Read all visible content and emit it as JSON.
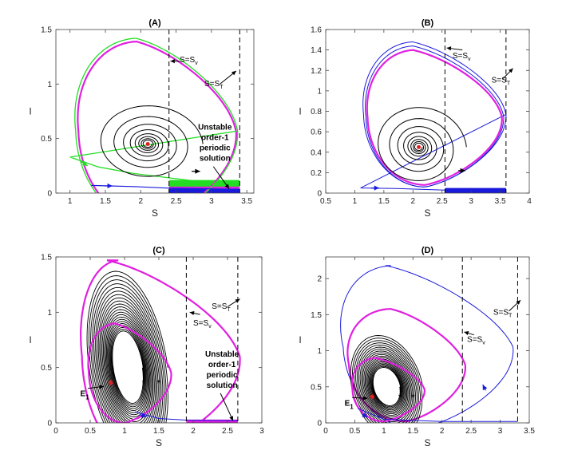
{
  "chart_data": [
    {
      "type": "line",
      "title": "(A)",
      "xlabel": "S",
      "ylabel": "I",
      "xlim": [
        0.8,
        3.6
      ],
      "ylim": [
        0,
        1.5
      ],
      "xticks": [
        1,
        1.5,
        2,
        2.5,
        3,
        3.5
      ],
      "yticks": [
        0,
        0.5,
        1,
        1.5
      ],
      "xtick_labels": [
        "1",
        "1.5",
        "2",
        "2.5",
        "3",
        "3.5"
      ],
      "ytick_labels": [
        "0",
        "0.5",
        "1",
        "1.5"
      ],
      "equilibrium": [
        2.1,
        0.45
      ],
      "vlines": [
        {
          "x": 2.4,
          "label": "S=S",
          "sub": "v",
          "label_at": [
            2.55,
            1.2
          ],
          "arrow_from": [
            2.55,
            1.21
          ],
          "arrow_to": [
            2.42,
            1.21
          ]
        },
        {
          "x": 3.4,
          "label": "S=S",
          "sub": "T",
          "label_at": [
            2.9,
            0.98
          ],
          "arrow_from": [
            3.12,
            1.0
          ],
          "arrow_to": [
            3.35,
            1.12
          ]
        }
      ],
      "annotation": {
        "lines": [
          "Unstable",
          "order-1",
          "periodic",
          "solution"
        ],
        "at": [
          3.05,
          0.58
        ],
        "arrow_to": [
          3.25,
          0.04
        ]
      },
      "series": [
        {
          "name": "magenta limit cycle",
          "color": "#e020e0",
          "width": 2.2,
          "kind": "cycle",
          "cx": 2.12,
          "cy": 0.56,
          "rxL": 1.0,
          "rxR": 1.23,
          "ry": 0.83,
          "skew": -0.6
        },
        {
          "name": "green orbit",
          "color": "#22dd22",
          "width": 1.3,
          "kind": "cycle",
          "cx": 2.12,
          "cy": 0.57,
          "rxL": 1.04,
          "rxR": 1.25,
          "ry": 0.85,
          "skew": -0.6,
          "tail": [
            [
              1.0,
              0.33
            ],
            [
              1.4,
              0.24
            ],
            [
              1.9,
              0.18
            ],
            [
              2.4,
              0.14
            ],
            [
              2.9,
              0.1
            ],
            [
              3.4,
              0.07
            ]
          ]
        },
        {
          "name": "black spiral",
          "color": "#000000",
          "width": 1.0,
          "kind": "spiral",
          "cx": 2.1,
          "cy": 0.45,
          "r0x": 0.78,
          "r0y": 0.38,
          "turns": 8,
          "decay": 0.72
        },
        {
          "name": "blue orbit",
          "color": "#1a1adc",
          "width": 1.2,
          "kind": "polyline",
          "points": [
            [
              1.3,
              0.07
            ],
            [
              1.9,
              0.06
            ],
            [
              2.4,
              0.045
            ],
            [
              3.4,
              0.035
            ]
          ]
        }
      ],
      "bands": [
        {
          "color": "#22dd22",
          "x0": 2.4,
          "x1": 3.4,
          "y0": 0.0,
          "y1": 0.12
        },
        {
          "color": "#1a1adc",
          "x0": 2.4,
          "x1": 3.4,
          "y0": 0.0,
          "y1": 0.045
        },
        {
          "color": "#e020e0",
          "x0": 2.4,
          "x1": 3.4,
          "y0": 0.04,
          "y1": 0.06
        }
      ],
      "arrows": [
        {
          "color": "#22dd22",
          "x": 1.15,
          "y": 0.29,
          "dx": 0.1,
          "dy": -0.04
        },
        {
          "color": "#1a1adc",
          "x": 1.48,
          "y": 0.066,
          "dx": 0.12,
          "dy": 0
        },
        {
          "color": "#000000",
          "x": 2.72,
          "y": 0.2,
          "dx": 0.12,
          "dy": 0
        }
      ],
      "stars": []
    },
    {
      "type": "line",
      "title": "(B)",
      "xlabel": "S",
      "ylabel": "I",
      "xlim": [
        0.5,
        4
      ],
      "ylim": [
        0,
        1.6
      ],
      "xticks": [
        0.5,
        1,
        1.5,
        2,
        2.5,
        3,
        3.5,
        4
      ],
      "yticks": [
        0,
        0.2,
        0.4,
        0.6,
        0.8,
        1,
        1.2,
        1.4,
        1.6
      ],
      "xtick_labels": [
        "0.5",
        "1",
        "1.5",
        "2",
        "2.5",
        "3",
        "3.5",
        "4"
      ],
      "ytick_labels": [
        "0",
        "0.2",
        "0.4",
        "0.6",
        "0.8",
        "1",
        "1.2",
        "1.4",
        "1.6"
      ],
      "equilibrium": [
        2.1,
        0.45
      ],
      "vlines": [
        {
          "x": 2.55,
          "label": "S=S",
          "sub": "v",
          "label_at": [
            2.68,
            1.32
          ],
          "arrow_from": [
            2.85,
            1.4
          ],
          "arrow_to": [
            2.58,
            1.42
          ]
        },
        {
          "x": 3.6,
          "label": "S=S",
          "sub": "T",
          "label_at": [
            3.35,
            1.08
          ],
          "arrow_from": [
            3.55,
            1.12
          ],
          "arrow_to": [
            3.72,
            1.22
          ]
        }
      ],
      "annotation": null,
      "series": [
        {
          "name": "blue orbit",
          "color": "#1a1adc",
          "width": 1.0,
          "kind": "cycle",
          "cx": 2.18,
          "cy": 0.77,
          "rxL": 1.03,
          "rxR": 1.42,
          "ry": 0.71,
          "skew": -0.55,
          "tail": [
            [
              1.1,
              0.05
            ],
            [
              1.7,
              0.045
            ],
            [
              2.55,
              0.03
            ],
            [
              3.6,
              0.025
            ]
          ]
        },
        {
          "name": "blue orbit 2",
          "color": "#1a1adc",
          "width": 1.0,
          "kind": "cycle",
          "cx": 2.18,
          "cy": 0.75,
          "rxL": 0.99,
          "rxR": 1.38,
          "ry": 0.69,
          "skew": -0.55
        },
        {
          "name": "magenta limit cycle",
          "color": "#e020e0",
          "width": 2.2,
          "kind": "cycle",
          "cx": 2.18,
          "cy": 0.74,
          "rxL": 0.96,
          "rxR": 1.35,
          "ry": 0.66,
          "skew": -0.55
        },
        {
          "name": "black spiral",
          "color": "#000000",
          "width": 1.0,
          "kind": "spiral",
          "cx": 2.1,
          "cy": 0.45,
          "r0x": 0.82,
          "r0y": 0.42,
          "turns": 8,
          "decay": 0.72
        }
      ],
      "bands": [
        {
          "color": "#1a1adc",
          "x0": 2.55,
          "x1": 3.6,
          "y0": 0.0,
          "y1": 0.05
        }
      ],
      "arrows": [
        {
          "color": "#1a1adc",
          "x": 1.28,
          "y": 0.05,
          "dx": 0.14,
          "dy": 0
        },
        {
          "color": "#000000",
          "x": 2.78,
          "y": 0.22,
          "dx": 0.12,
          "dy": 0
        }
      ],
      "stars": []
    },
    {
      "type": "line",
      "title": "(C)",
      "xlabel": "S",
      "ylabel": "I",
      "xlim": [
        0,
        3
      ],
      "ylim": [
        0,
        1.5
      ],
      "xticks": [
        0,
        0.5,
        1,
        1.5,
        2,
        2.5,
        3
      ],
      "yticks": [
        0,
        0.5,
        1,
        1.5
      ],
      "xtick_labels": [
        "0",
        "0.5",
        "1",
        "1.5",
        "2",
        "2.5",
        "3"
      ],
      "ytick_labels": [
        "0",
        "0.5",
        "1",
        "1.5"
      ],
      "equilibrium": [
        0.8,
        0.36
      ],
      "vlines": [
        {
          "x": 1.9,
          "label": "S=S",
          "sub": "v",
          "label_at": [
            2.0,
            0.88
          ],
          "arrow_from": [
            2.1,
            0.98
          ],
          "arrow_to": [
            1.95,
            1.0
          ]
        },
        {
          "x": 2.65,
          "label": "S=S",
          "sub": "T",
          "label_at": [
            2.27,
            1.03
          ],
          "arrow_from": [
            2.5,
            1.05
          ],
          "arrow_to": [
            2.68,
            1.12
          ]
        }
      ],
      "annotation": {
        "lines": [
          "Unstable",
          "order-1",
          "periodic",
          "solution"
        ],
        "at": [
          2.42,
          0.6
        ],
        "arrow_to": [
          2.58,
          0.02
        ]
      },
      "series": [
        {
          "name": "magenta outer cycle",
          "color": "#e020e0",
          "width": 2.2,
          "kind": "cycle",
          "cx": 1.1,
          "cy": 0.6,
          "rxL": 0.72,
          "rxR": 1.58,
          "ry": 0.87,
          "skew": -0.9
        },
        {
          "name": "black spiral outward",
          "color": "#000000",
          "width": 0.9,
          "kind": "spiral",
          "cx": 1.05,
          "cy": 0.5,
          "r0x": 0.58,
          "r0y": 0.88,
          "turns": 22,
          "decay": 0.955,
          "skew": -0.7
        },
        {
          "name": "magenta inner cycle",
          "color": "#e020e0",
          "width": 2.2,
          "kind": "cycle",
          "cx": 0.98,
          "cy": 0.45,
          "rxL": 0.5,
          "rxR": 0.7,
          "ry": 0.45,
          "skew": -0.75
        },
        {
          "name": "blue orbit",
          "color": "#1a1adc",
          "width": 1.0,
          "kind": "polyline",
          "points": [
            [
              1.15,
              0.1
            ],
            [
              1.5,
              0.04
            ],
            [
              1.9,
              0.025
            ],
            [
              2.65,
              0.02
            ]
          ]
        }
      ],
      "bands": [
        {
          "color": "#e020e0",
          "x0": 1.9,
          "x1": 2.65,
          "y0": 0.0,
          "y1": 0.03
        }
      ],
      "arrows": [
        {
          "color": "#1a1adc",
          "x": 1.22,
          "y": 0.075,
          "dx": 0.1,
          "dy": -0.02
        }
      ],
      "stars": [
        {
          "color": "#e02020",
          "x": 0.8,
          "y": 0.36
        },
        {
          "color": "#000000",
          "x": 1.28,
          "y": 0.36
        },
        {
          "color": "#000000",
          "x": 1.5,
          "y": 0.36
        }
      ],
      "eq_label": {
        "text": "E",
        "sub": "1",
        "at": [
          0.42,
          0.24
        ],
        "arrow_to": [
          0.7,
          0.33
        ]
      }
    },
    {
      "type": "line",
      "title": "(D)",
      "xlabel": "S",
      "ylabel": "I",
      "xlim": [
        0,
        3.5
      ],
      "ylim": [
        0,
        2.3
      ],
      "xticks": [
        0,
        0.5,
        1,
        1.5,
        2,
        2.5,
        3,
        3.5
      ],
      "yticks": [
        0,
        0.5,
        1,
        1.5,
        2
      ],
      "xtick_labels": [
        "0",
        "0.5",
        "1",
        "1.5",
        "2",
        "2.5",
        "3",
        "3.5"
      ],
      "ytick_labels": [
        "0",
        "0.5",
        "1",
        "1.5",
        "2"
      ],
      "equilibrium": [
        0.8,
        0.36
      ],
      "vlines": [
        {
          "x": 2.35,
          "label": "S=S",
          "sub": "v",
          "label_at": [
            2.43,
            1.12
          ],
          "arrow_from": [
            2.55,
            1.22
          ],
          "arrow_to": [
            2.38,
            1.26
          ]
        },
        {
          "x": 3.3,
          "label": "S=S",
          "sub": "T",
          "label_at": [
            2.88,
            1.5
          ],
          "arrow_from": [
            3.15,
            1.55
          ],
          "arrow_to": [
            3.35,
            1.7
          ]
        }
      ],
      "annotation": null,
      "series": [
        {
          "name": "blue outer orbit",
          "color": "#1a1adc",
          "width": 1.0,
          "kind": "cycle",
          "cx": 1.5,
          "cy": 1.05,
          "rxL": 1.2,
          "rxR": 1.72,
          "ry": 1.13,
          "skew": -1.1
        },
        {
          "name": "magenta outer cycle",
          "color": "#e020e0",
          "width": 2.2,
          "kind": "cycle",
          "cx": 1.35,
          "cy": 0.8,
          "rxL": 0.95,
          "rxR": 1.05,
          "ry": 0.78,
          "skew": -0.9
        },
        {
          "name": "black spiral outward",
          "color": "#000000",
          "width": 0.9,
          "kind": "spiral",
          "cx": 1.05,
          "cy": 0.5,
          "r0x": 0.62,
          "r0y": 0.72,
          "turns": 20,
          "decay": 0.95,
          "skew": -0.7
        },
        {
          "name": "magenta inner cycle",
          "color": "#e020e0",
          "width": 2.2,
          "kind": "cycle",
          "cx": 0.98,
          "cy": 0.46,
          "rxL": 0.52,
          "rxR": 0.72,
          "ry": 0.44,
          "skew": -0.75
        },
        {
          "name": "blue tail",
          "color": "#1a1adc",
          "width": 1.0,
          "kind": "polyline",
          "points": [
            [
              0.55,
              0.2
            ],
            [
              1.0,
              0.05
            ],
            [
              2.0,
              0.02
            ],
            [
              3.3,
              0.02
            ]
          ]
        }
      ],
      "bands": [],
      "arrows": [
        {
          "color": "#1a1adc",
          "x": 2.75,
          "y": 0.45,
          "dx": -0.05,
          "dy": 0.08
        },
        {
          "color": "#1a1adc",
          "x": 0.62,
          "y": 0.12,
          "dx": 0.1,
          "dy": -0.04
        }
      ],
      "stars": [
        {
          "color": "#e02020",
          "x": 0.8,
          "y": 0.36
        },
        {
          "color": "#000000",
          "x": 1.28,
          "y": 0.36
        },
        {
          "color": "#000000",
          "x": 1.5,
          "y": 0.36
        }
      ],
      "eq_label": {
        "text": "E",
        "sub": "1",
        "at": [
          0.4,
          0.24
        ],
        "arrow_to": [
          0.72,
          0.34
        ]
      }
    }
  ]
}
